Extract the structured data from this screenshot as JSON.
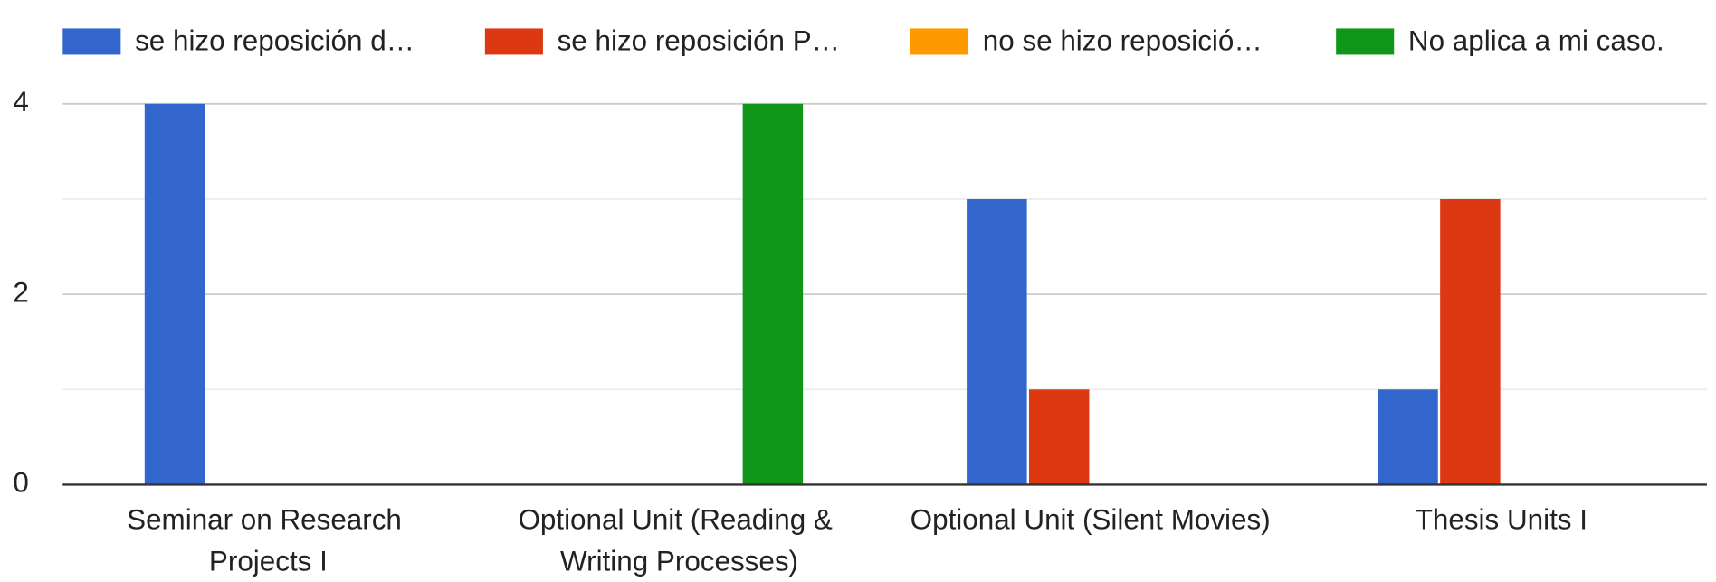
{
  "chart_data": {
    "type": "bar",
    "categories": [
      "Seminar on Research Projects I",
      "Optional Unit (Reading & Writing Processes)",
      "Optional Unit (Silent Movies)",
      "Thesis Units I"
    ],
    "series": [
      {
        "name": "se hizo reposición d…",
        "color": "#3366cc",
        "values": [
          4,
          0,
          3,
          1
        ]
      },
      {
        "name": "se hizo reposición P…",
        "color": "#dc3912",
        "values": [
          0,
          0,
          1,
          3
        ]
      },
      {
        "name": "no se hizo reposició…",
        "color": "#ff9900",
        "values": [
          0,
          0,
          0,
          0
        ]
      },
      {
        "name": "No aplica a mi caso.",
        "color": "#109618",
        "values": [
          0,
          4,
          0,
          0
        ]
      }
    ],
    "ylim": [
      0,
      4
    ],
    "yticks": [
      0,
      2,
      4
    ],
    "minor_yticks": [
      1,
      3
    ],
    "grid": true,
    "legend": "top"
  }
}
